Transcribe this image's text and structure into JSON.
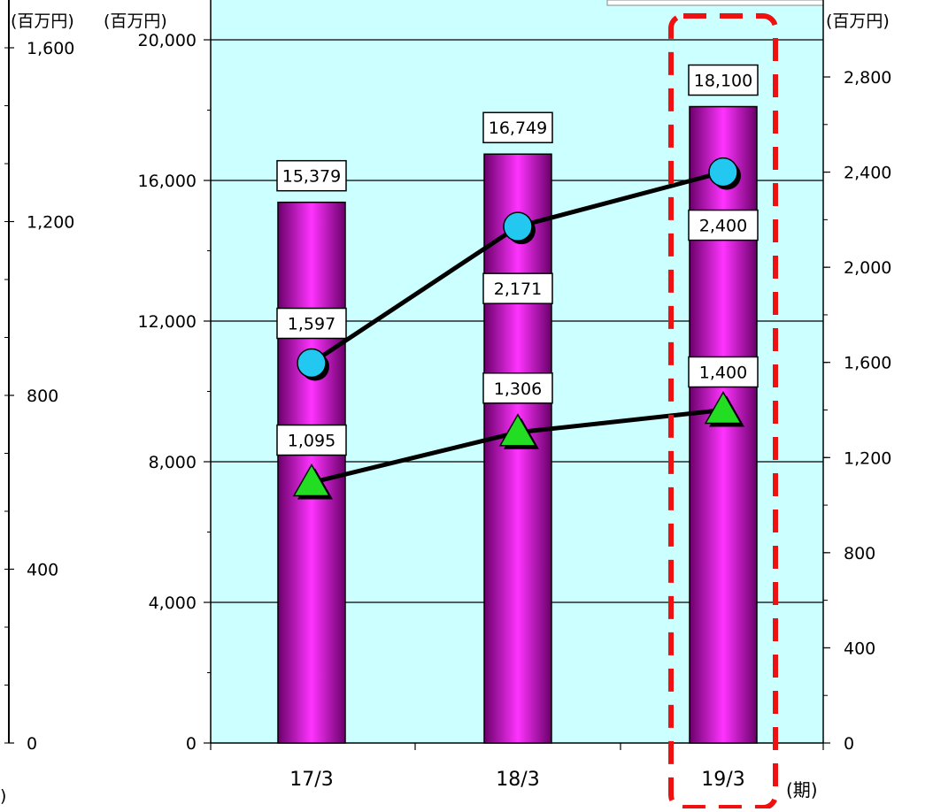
{
  "chart_data": {
    "type": "bar",
    "categories": [
      "17/3",
      "18/3",
      "19/3"
    ],
    "xlabel": "(期)",
    "axes": {
      "left_partial": {
        "unit": "(百万円)",
        "ticks": [
          "1,600",
          "1,200",
          "800",
          "400",
          "0"
        ],
        "ylim": [
          0,
          1600
        ]
      },
      "left": {
        "unit": "(百万円)",
        "ticks": [
          "20,000",
          "16,000",
          "12,000",
          "8,000",
          "4,000",
          "0"
        ],
        "ylim": [
          0,
          20000
        ]
      },
      "right": {
        "unit": "(百万円)",
        "ticks": [
          "2,800",
          "2,400",
          "2,000",
          "1,600",
          "1,200",
          "800",
          "400",
          "0"
        ],
        "ylim": [
          0,
          2933
        ]
      }
    },
    "series": [
      {
        "kind": "bar",
        "axis": "left",
        "values": [
          15379,
          16749,
          18100
        ],
        "labels": [
          "15,379",
          "16,749",
          "18,100"
        ],
        "color": "#cc00cc"
      },
      {
        "kind": "line",
        "marker": "circle",
        "axis": "right",
        "values": [
          1597,
          2171,
          2400
        ],
        "labels": [
          "1,597",
          "2,171",
          "2,400"
        ],
        "color": "#22c8f0"
      },
      {
        "kind": "line",
        "marker": "triangle",
        "axis": "right",
        "values": [
          1095,
          1306,
          1400
        ],
        "labels": [
          "1,095",
          "1,306",
          "1,400"
        ],
        "color": "#22dd22"
      }
    ],
    "highlight_category": "19/3",
    "plot_bg": "#ccffff",
    "grid": true
  }
}
